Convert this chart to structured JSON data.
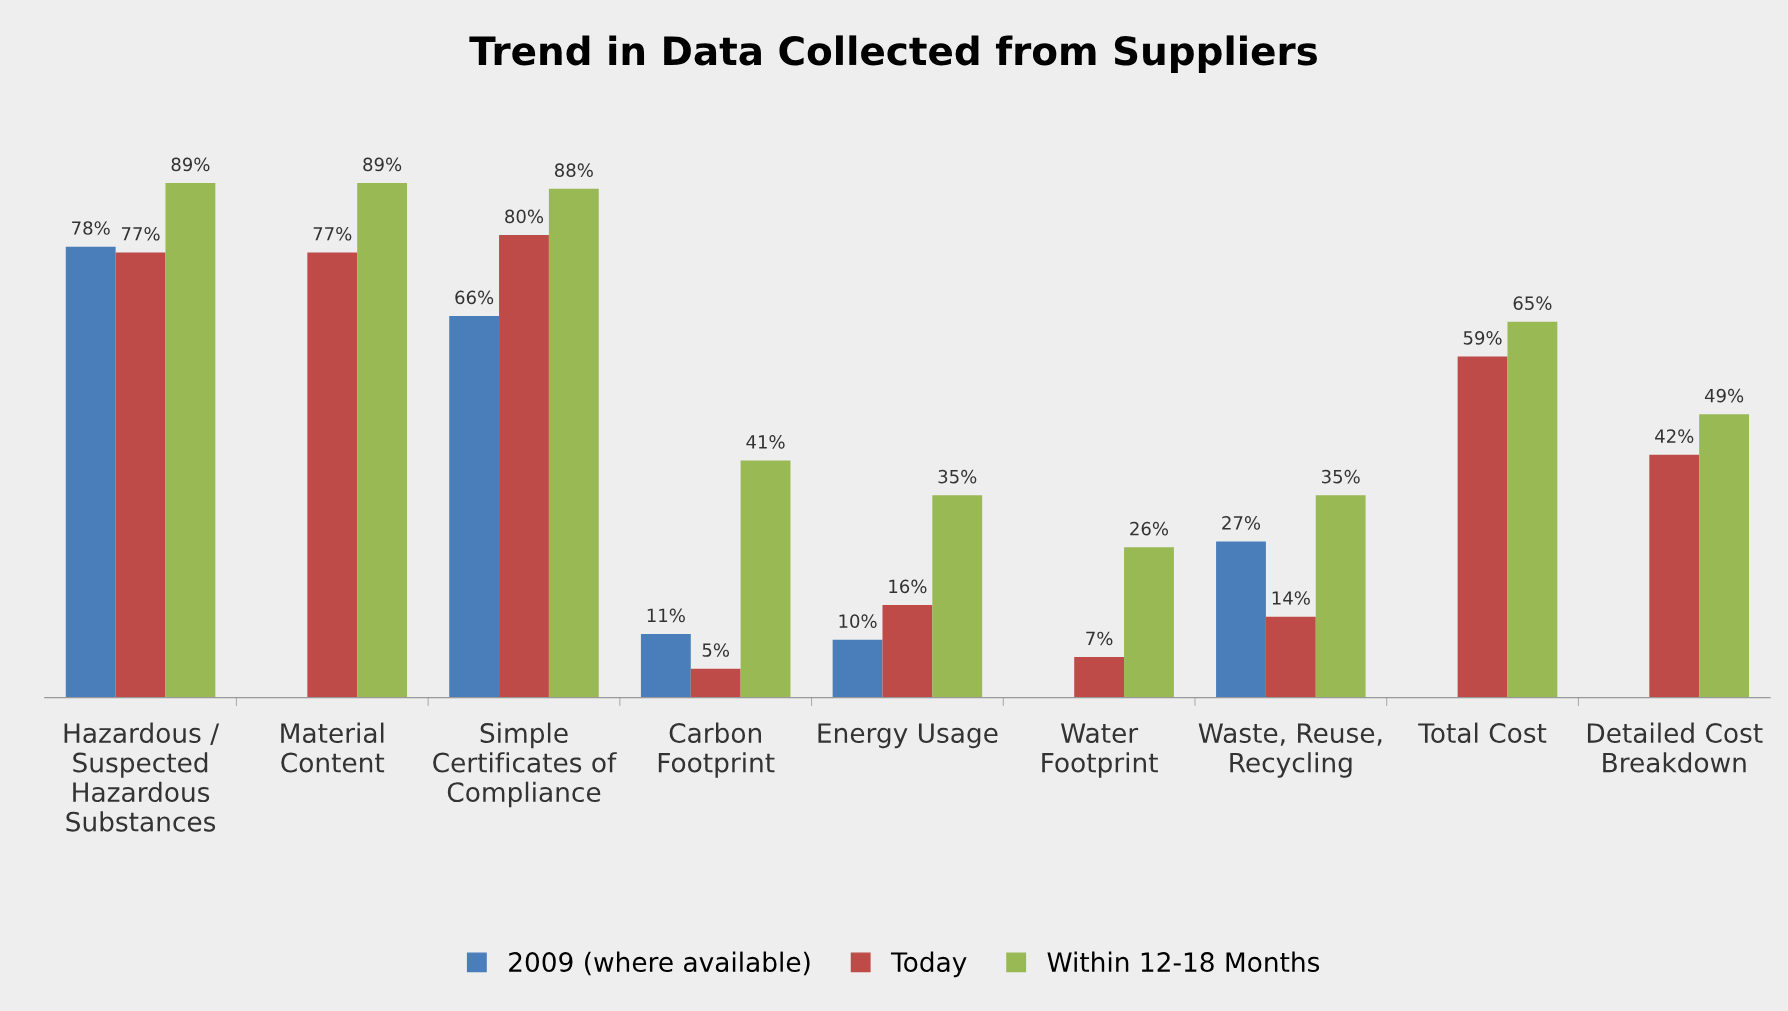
{
  "chart_data": {
    "type": "bar",
    "title": "Trend in Data Collected from Suppliers",
    "categories": [
      "Hazardous /\nSuspected\nHazardous\nSubstances",
      "Material\nContent",
      "Simple\nCertificates of\nCompliance",
      "Carbon\nFootprint",
      "Energy Usage",
      "Water\nFootprint",
      "Waste, Reuse,\nRecycling",
      "Total Cost",
      "Detailed Cost\nBreakdown"
    ],
    "series": [
      {
        "name": "2009 (where available)",
        "color": "#4a7ebb",
        "values": [
          78,
          null,
          66,
          11,
          10,
          null,
          27,
          null,
          null
        ],
        "value_labels": [
          "78%",
          null,
          "66%",
          "11%",
          "10%",
          null,
          "27%",
          null,
          null
        ]
      },
      {
        "name": "Today",
        "color": "#be4b48",
        "values": [
          77,
          77,
          80,
          5,
          16,
          7,
          14,
          59,
          42
        ],
        "value_labels": [
          "77%",
          "77%",
          "80%",
          "5%",
          "16%",
          "7%",
          "14%",
          "59%",
          "42%"
        ]
      },
      {
        "name": "Within 12-18 Months",
        "color": "#98b954",
        "values": [
          89,
          89,
          88,
          41,
          35,
          26,
          35,
          65,
          49
        ],
        "value_labels": [
          "89%",
          "89%",
          "88%",
          "41%",
          "35%",
          "26%",
          "35%",
          "65%",
          "49%"
        ]
      }
    ],
    "legend": "bottom",
    "grid": false
  }
}
